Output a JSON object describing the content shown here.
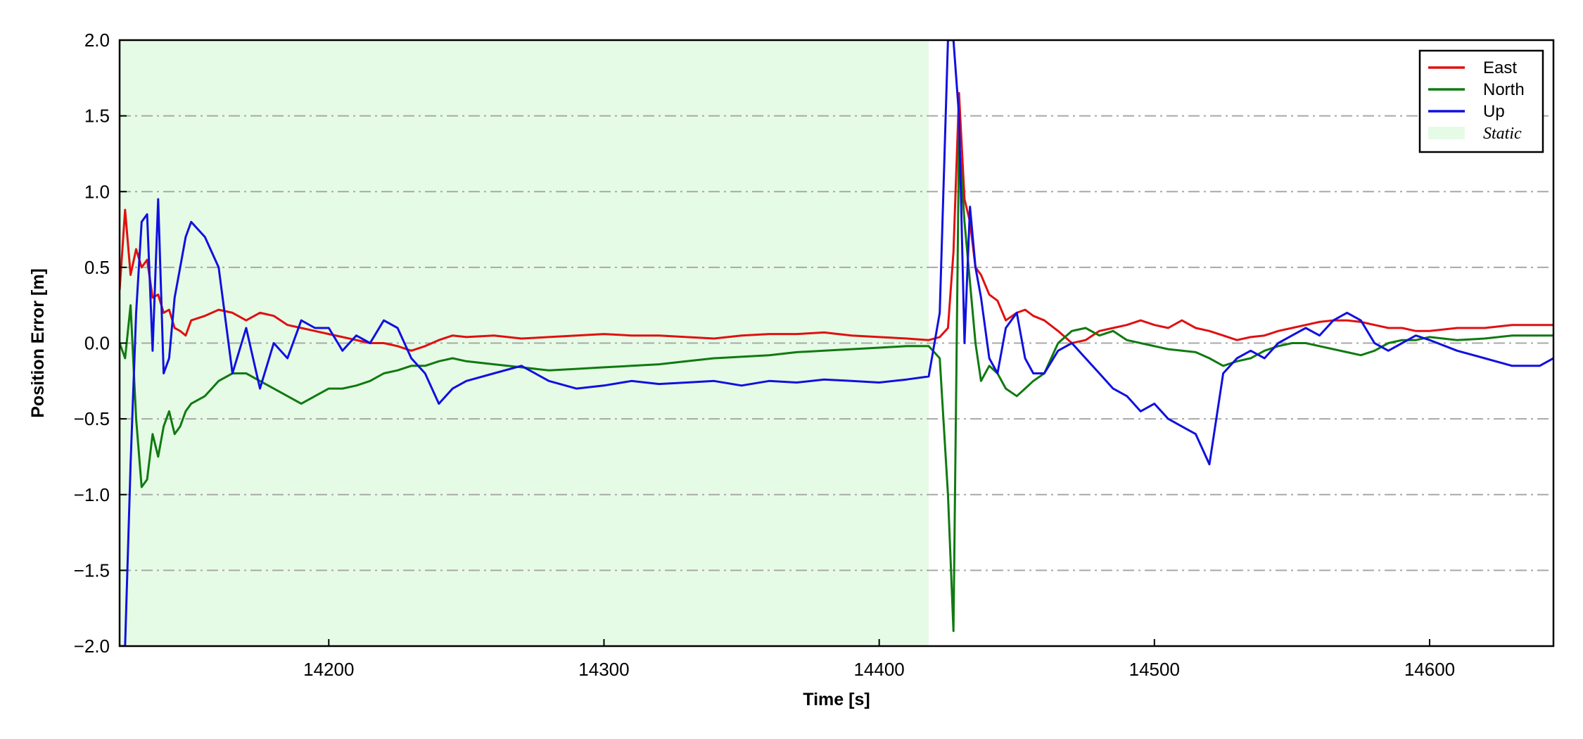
{
  "chart_data": {
    "type": "line",
    "xlabel": "Time [s]",
    "ylabel": "Position Error [m]",
    "xlim": [
      14124,
      14645
    ],
    "ylim": [
      -2.0,
      2.0
    ],
    "x_ticks": [
      14200,
      14300,
      14400,
      14500,
      14600
    ],
    "x_tick_labels": [
      "14200",
      "14300",
      "14400",
      "14500",
      "14600"
    ],
    "y_ticks": [
      -2.0,
      -1.5,
      -1.0,
      -0.5,
      0.0,
      0.5,
      1.0,
      1.5,
      2.0
    ],
    "y_tick_labels": [
      "−2.0",
      "−1.5",
      "−1.0",
      "−0.5",
      "0.0",
      "0.5",
      "1.0",
      "1.5",
      "2.0"
    ],
    "grid": "horizontal dash-dot",
    "legend_position": "top-right",
    "static_region": {
      "name": "Static",
      "x_start": 14124,
      "x_end": 14418,
      "color": "#e6fbe6"
    },
    "series": [
      {
        "name": "East",
        "color": "#e01010",
        "x": [
          14124,
          14126,
          14128,
          14130,
          14132,
          14134,
          14136,
          14138,
          14140,
          14142,
          14144,
          14146,
          14148,
          14150,
          14155,
          14160,
          14165,
          14170,
          14175,
          14180,
          14185,
          14190,
          14195,
          14200,
          14205,
          14210,
          14215,
          14220,
          14225,
          14230,
          14235,
          14240,
          14245,
          14250,
          14260,
          14270,
          14280,
          14290,
          14300,
          14310,
          14320,
          14330,
          14340,
          14350,
          14360,
          14370,
          14380,
          14390,
          14400,
          14410,
          14418,
          14422,
          14425,
          14427,
          14429,
          14431,
          14433,
          14435,
          14437,
          14440,
          14443,
          14446,
          14450,
          14453,
          14456,
          14460,
          14465,
          14470,
          14475,
          14480,
          14485,
          14490,
          14495,
          14500,
          14505,
          14510,
          14515,
          14520,
          14525,
          14530,
          14535,
          14540,
          14545,
          14550,
          14555,
          14560,
          14565,
          14570,
          14575,
          14580,
          14585,
          14590,
          14595,
          14600,
          14610,
          14620,
          14630,
          14640,
          14645
        ],
        "y": [
          0.35,
          0.88,
          0.45,
          0.62,
          0.5,
          0.55,
          0.3,
          0.32,
          0.2,
          0.22,
          0.1,
          0.08,
          0.05,
          0.15,
          0.18,
          0.22,
          0.2,
          0.15,
          0.2,
          0.18,
          0.12,
          0.1,
          0.08,
          0.06,
          0.04,
          0.02,
          0.0,
          0.0,
          -0.02,
          -0.05,
          -0.02,
          0.02,
          0.05,
          0.04,
          0.05,
          0.03,
          0.04,
          0.05,
          0.06,
          0.05,
          0.05,
          0.04,
          0.03,
          0.05,
          0.06,
          0.06,
          0.07,
          0.05,
          0.04,
          0.03,
          0.02,
          0.04,
          0.1,
          0.6,
          1.65,
          0.95,
          0.8,
          0.5,
          0.45,
          0.32,
          0.28,
          0.15,
          0.2,
          0.22,
          0.18,
          0.15,
          0.08,
          0.0,
          0.02,
          0.08,
          0.1,
          0.12,
          0.15,
          0.12,
          0.1,
          0.15,
          0.1,
          0.08,
          0.05,
          0.02,
          0.04,
          0.05,
          0.08,
          0.1,
          0.12,
          0.14,
          0.15,
          0.15,
          0.14,
          0.12,
          0.1,
          0.1,
          0.08,
          0.08,
          0.1,
          0.1,
          0.12,
          0.12,
          0.12
        ]
      },
      {
        "name": "North",
        "color": "#107a10",
        "x": [
          14124,
          14126,
          14128,
          14130,
          14132,
          14134,
          14136,
          14138,
          14140,
          14142,
          14144,
          14146,
          14148,
          14150,
          14155,
          14160,
          14165,
          14170,
          14175,
          14180,
          14185,
          14190,
          14195,
          14200,
          14205,
          14210,
          14215,
          14220,
          14225,
          14230,
          14235,
          14240,
          14245,
          14250,
          14260,
          14270,
          14280,
          14290,
          14300,
          14310,
          14320,
          14330,
          14340,
          14350,
          14360,
          14370,
          14380,
          14390,
          14400,
          14410,
          14418,
          14422,
          14425,
          14427,
          14429,
          14431,
          14433,
          14435,
          14437,
          14440,
          14443,
          14446,
          14450,
          14453,
          14456,
          14460,
          14465,
          14470,
          14475,
          14480,
          14485,
          14490,
          14495,
          14500,
          14505,
          14510,
          14515,
          14520,
          14525,
          14530,
          14535,
          14540,
          14545,
          14550,
          14555,
          14560,
          14565,
          14570,
          14575,
          14580,
          14585,
          14590,
          14595,
          14600,
          14610,
          14620,
          14630,
          14640,
          14645
        ],
        "y": [
          0.0,
          -0.1,
          0.25,
          -0.5,
          -0.95,
          -0.9,
          -0.6,
          -0.75,
          -0.55,
          -0.45,
          -0.6,
          -0.55,
          -0.45,
          -0.4,
          -0.35,
          -0.25,
          -0.2,
          -0.2,
          -0.25,
          -0.3,
          -0.35,
          -0.4,
          -0.35,
          -0.3,
          -0.3,
          -0.28,
          -0.25,
          -0.2,
          -0.18,
          -0.15,
          -0.15,
          -0.12,
          -0.1,
          -0.12,
          -0.14,
          -0.16,
          -0.18,
          -0.17,
          -0.16,
          -0.15,
          -0.14,
          -0.12,
          -0.1,
          -0.09,
          -0.08,
          -0.06,
          -0.05,
          -0.04,
          -0.03,
          -0.02,
          -0.02,
          -0.1,
          -1.0,
          -1.9,
          1.35,
          0.8,
          0.4,
          0.0,
          -0.25,
          -0.15,
          -0.2,
          -0.3,
          -0.35,
          -0.3,
          -0.25,
          -0.2,
          0.0,
          0.08,
          0.1,
          0.05,
          0.08,
          0.02,
          0.0,
          -0.02,
          -0.04,
          -0.05,
          -0.06,
          -0.1,
          -0.15,
          -0.12,
          -0.1,
          -0.05,
          -0.02,
          0.0,
          0.0,
          -0.02,
          -0.04,
          -0.06,
          -0.08,
          -0.05,
          0.0,
          0.02,
          0.02,
          0.04,
          0.02,
          0.03,
          0.05,
          0.05,
          0.05
        ]
      },
      {
        "name": "Up",
        "color": "#1010e0",
        "x": [
          14124,
          14126,
          14128,
          14130,
          14132,
          14134,
          14136,
          14138,
          14140,
          14142,
          14144,
          14146,
          14148,
          14150,
          14155,
          14160,
          14165,
          14170,
          14175,
          14180,
          14185,
          14190,
          14195,
          14200,
          14205,
          14210,
          14215,
          14220,
          14225,
          14230,
          14235,
          14240,
          14245,
          14250,
          14260,
          14270,
          14280,
          14290,
          14300,
          14310,
          14320,
          14330,
          14340,
          14350,
          14360,
          14370,
          14380,
          14390,
          14400,
          14410,
          14418,
          14422,
          14425,
          14427,
          14429,
          14431,
          14433,
          14435,
          14437,
          14440,
          14443,
          14446,
          14450,
          14453,
          14456,
          14460,
          14465,
          14470,
          14475,
          14480,
          14485,
          14490,
          14495,
          14500,
          14505,
          14510,
          14515,
          14520,
          14525,
          14530,
          14535,
          14540,
          14545,
          14550,
          14555,
          14560,
          14565,
          14570,
          14575,
          14580,
          14585,
          14590,
          14595,
          14600,
          14610,
          14620,
          14630,
          14640,
          14645
        ],
        "y": [
          -2.0,
          -2.0,
          -0.8,
          0.2,
          0.8,
          0.85,
          -0.05,
          0.95,
          -0.2,
          -0.1,
          0.3,
          0.5,
          0.7,
          0.8,
          0.7,
          0.5,
          -0.2,
          0.1,
          -0.3,
          0.0,
          -0.1,
          0.15,
          0.1,
          0.1,
          -0.05,
          0.05,
          0.0,
          0.15,
          0.1,
          -0.1,
          -0.2,
          -0.4,
          -0.3,
          -0.25,
          -0.2,
          -0.15,
          -0.25,
          -0.3,
          -0.28,
          -0.25,
          -0.27,
          -0.26,
          -0.25,
          -0.28,
          -0.25,
          -0.26,
          -0.24,
          -0.25,
          -0.26,
          -0.24,
          -0.22,
          0.2,
          2.0,
          2.0,
          1.5,
          0.0,
          0.9,
          0.5,
          0.3,
          -0.1,
          -0.2,
          0.1,
          0.2,
          -0.1,
          -0.2,
          -0.2,
          -0.05,
          0.0,
          -0.1,
          -0.2,
          -0.3,
          -0.35,
          -0.45,
          -0.4,
          -0.5,
          -0.55,
          -0.6,
          -0.8,
          -0.2,
          -0.1,
          -0.05,
          -0.1,
          0.0,
          0.05,
          0.1,
          0.05,
          0.15,
          0.2,
          0.15,
          0.0,
          -0.05,
          0.0,
          0.05,
          0.02,
          -0.05,
          -0.1,
          -0.15,
          -0.15,
          -0.1
        ]
      }
    ]
  }
}
